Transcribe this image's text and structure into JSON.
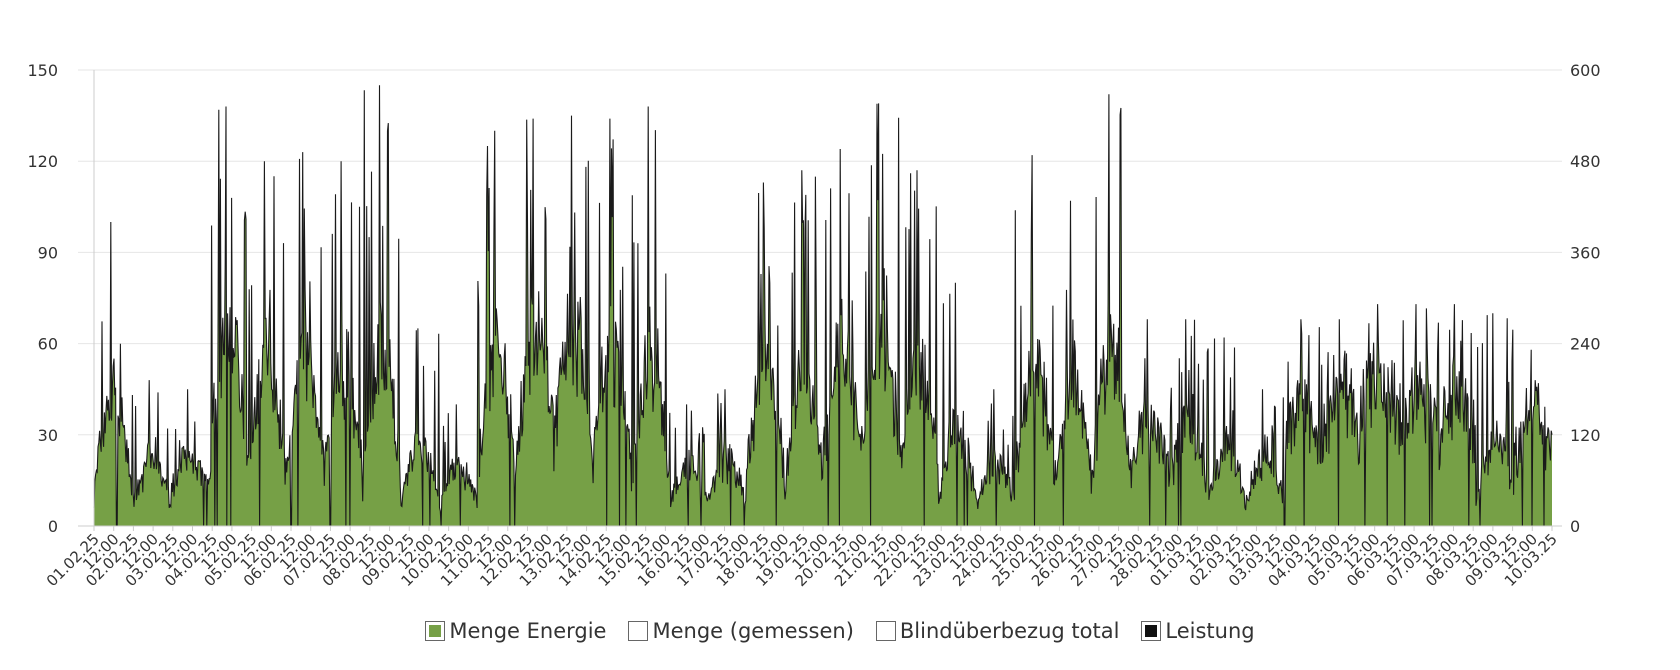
{
  "chart_data": {
    "type": "area",
    "title": "",
    "xlabel": "",
    "ylabel": "",
    "y_left": {
      "min": 0,
      "max": 150,
      "ticks": [
        0,
        30,
        60,
        90,
        120,
        150
      ]
    },
    "y_right": {
      "min": 0,
      "max": 600,
      "ticks": [
        0,
        120,
        240,
        360,
        480,
        600
      ]
    },
    "x_tick_labels": [
      "01.02.25",
      "12:00",
      "02.02.25",
      "12:00",
      "03.02.25",
      "12:00",
      "04.02.25",
      "12:00",
      "05.02.25",
      "12:00",
      "06.02.25",
      "12:00",
      "07.02.25",
      "12:00",
      "08.02.25",
      "12:00",
      "09.02.25",
      "12:00",
      "10.02.25",
      "12:00",
      "11.02.25",
      "12:00",
      "12.02.25",
      "12:00",
      "13.02.25",
      "12:00",
      "14.02.25",
      "12:00",
      "15.02.25",
      "12:00",
      "16.02.25",
      "12:00",
      "17.02.25",
      "12:00",
      "18.02.25",
      "12:00",
      "19.02.25",
      "12:00",
      "20.02.25",
      "12:00",
      "21.02.25",
      "12:00",
      "22.02.25",
      "12:00",
      "23.02.25",
      "12:00",
      "24.02.25",
      "12:00",
      "25.02.25",
      "12:00",
      "26.02.25",
      "12:00",
      "27.02.25",
      "12:00",
      "28.02.25",
      "12:00",
      "01.03.25",
      "12:00",
      "02.03.25",
      "12:00",
      "03.03.25",
      "12:00",
      "04.03.25",
      "12:00",
      "05.03.25",
      "12:00",
      "06.03.25",
      "12:00",
      "07.03.25",
      "12:00",
      "08.03.25",
      "12:00",
      "09.03.25",
      "12:00",
      "10.03.25"
    ],
    "series_color": "#76a046",
    "line_color": "#1a1a1a",
    "daily_peak_approx": [
      100,
      48,
      45,
      138,
      120,
      123,
      120,
      145,
      65,
      40,
      130,
      134,
      135,
      134,
      138,
      40,
      45,
      113,
      117,
      124,
      139,
      117,
      80,
      45,
      122,
      107,
      142,
      68,
      68,
      62,
      45,
      68,
      68,
      73,
      73,
      73,
      70,
      58
    ],
    "daily_base_approx": [
      15,
      10,
      15,
      30,
      25,
      25,
      25,
      20,
      10,
      10,
      25,
      35,
      45,
      30,
      20,
      10,
      12,
      25,
      20,
      30,
      35,
      25,
      10,
      10,
      25,
      20,
      20,
      25,
      20,
      10,
      12,
      35,
      45,
      50,
      40,
      40,
      10,
      30
    ],
    "grid": true,
    "legend_position": "bottom",
    "legend": [
      {
        "label": "Menge Energie",
        "swatch": "#76a046",
        "active": true
      },
      {
        "label": "Menge (gemessen)",
        "swatch": "#ffffff",
        "active": false
      },
      {
        "label": "Blindüberbezug total",
        "swatch": "#ffffff",
        "active": false
      },
      {
        "label": "Leistung",
        "swatch": "#111111",
        "active": true
      }
    ]
  }
}
